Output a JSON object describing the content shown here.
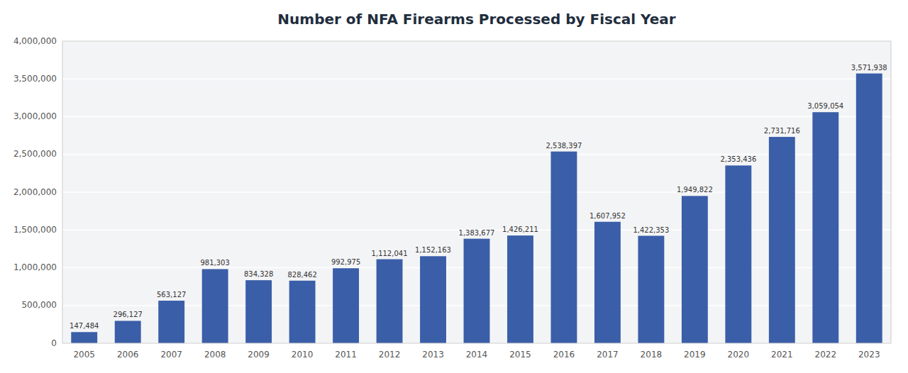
{
  "chart_data": {
    "type": "bar",
    "title": "Number of NFA Firearms Processed by Fiscal Year",
    "categories": [
      "2005",
      "2006",
      "2007",
      "2008",
      "2009",
      "2010",
      "2011",
      "2012",
      "2013",
      "2014",
      "2015",
      "2016",
      "2017",
      "2018",
      "2019",
      "2020",
      "2021",
      "2022",
      "2023"
    ],
    "values": [
      147484,
      296127,
      563127,
      981303,
      834328,
      828462,
      992975,
      1112041,
      1152163,
      1383677,
      1426211,
      2538397,
      1607952,
      1422353,
      1949822,
      2353436,
      2731716,
      3059054,
      3571938
    ],
    "value_labels": [
      "147,484",
      "296,127",
      "563,127",
      "981,303",
      "834,328",
      "828,462",
      "992,975",
      "1,112,041",
      "1,152,163",
      "1,383,677",
      "1,426,211",
      "2,538,397",
      "1,607,952",
      "1,422,353",
      "1,949,822",
      "2,353,436",
      "2,731,716",
      "3,059,054",
      "3,571,938"
    ],
    "color": "#3A5EA8",
    "ylim": [
      0,
      4000000
    ],
    "yticks": [
      0,
      {
        "value": 500000,
        "label": "500,000"
      },
      {
        "value": 1000000,
        "label": "1,000,000"
      },
      {
        "value": 1500000,
        "label": "1,500,000"
      },
      {
        "value": 2000000,
        "label": "2,000,000"
      },
      {
        "value": 2500000,
        "label": "2,500,000"
      },
      {
        "value": 3000000,
        "label": "3,000,000"
      },
      {
        "value": 3500000,
        "label": "3,500,000"
      },
      {
        "value": 4000000,
        "label": "4,000,000"
      }
    ],
    "grid": true,
    "data_labels": true
  }
}
